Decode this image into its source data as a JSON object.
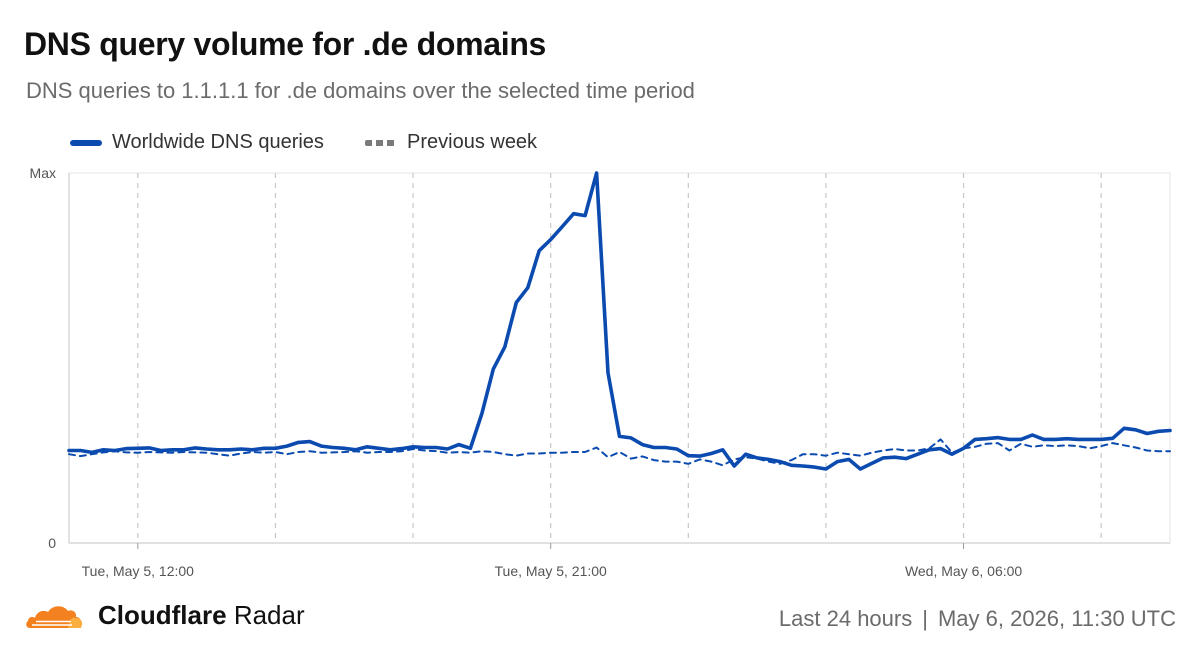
{
  "header": {
    "title": "DNS query volume for .de domains",
    "subtitle": "DNS queries to 1.1.1.1 for .de domains over the selected time period"
  },
  "legend": {
    "current_label": "Worldwide DNS queries",
    "previous_label": "Previous week"
  },
  "colors": {
    "current": "#0b4bb0",
    "previous": "#0b4bb0",
    "cloud_orange": "#f48120",
    "cloud_light": "#faae40"
  },
  "footer": {
    "brand_bold": "Cloudflare",
    "brand_regular": "Radar",
    "range": "Last 24 hours",
    "separator": "|",
    "timestamp": "May 6, 2026, 11:30 UTC"
  },
  "chart_data": {
    "type": "line",
    "title": "DNS query volume for .de domains",
    "xlabel": "",
    "ylabel": "",
    "ylim": [
      0,
      1
    ],
    "ytick_labels": [
      "0",
      "Max"
    ],
    "xlim": [
      10.5,
      34.5
    ],
    "xtick_positions": [
      12,
      21,
      30
    ],
    "xtick_labels": [
      "Tue, May 5, 12:00",
      "Tue, May 5, 21:00",
      "Wed, May 6, 06:00"
    ],
    "gridline_positions": [
      12,
      15,
      18,
      21,
      24,
      27,
      30,
      33
    ],
    "grid": "vertical dashed",
    "legend_position": "top-left",
    "series": [
      {
        "name": "Worldwide DNS queries",
        "style": "solid",
        "points": [
          [
            10.5,
            0.25
          ],
          [
            10.75,
            0.25
          ],
          [
            11.0,
            0.245
          ],
          [
            11.25,
            0.252
          ],
          [
            11.5,
            0.25
          ],
          [
            11.75,
            0.255
          ],
          [
            12.0,
            0.256
          ],
          [
            12.25,
            0.257
          ],
          [
            12.5,
            0.25
          ],
          [
            12.75,
            0.252
          ],
          [
            13.0,
            0.252
          ],
          [
            13.25,
            0.257
          ],
          [
            13.5,
            0.254
          ],
          [
            13.75,
            0.252
          ],
          [
            14.0,
            0.252
          ],
          [
            14.25,
            0.254
          ],
          [
            14.5,
            0.252
          ],
          [
            14.75,
            0.256
          ],
          [
            15.0,
            0.256
          ],
          [
            15.25,
            0.262
          ],
          [
            15.5,
            0.272
          ],
          [
            15.75,
            0.274
          ],
          [
            16.0,
            0.262
          ],
          [
            16.25,
            0.258
          ],
          [
            16.5,
            0.256
          ],
          [
            16.75,
            0.252
          ],
          [
            17.0,
            0.26
          ],
          [
            17.25,
            0.256
          ],
          [
            17.5,
            0.252
          ],
          [
            17.75,
            0.255
          ],
          [
            18.0,
            0.26
          ],
          [
            18.25,
            0.258
          ],
          [
            18.5,
            0.258
          ],
          [
            18.75,
            0.254
          ],
          [
            19.0,
            0.266
          ],
          [
            19.25,
            0.256
          ],
          [
            19.5,
            0.35
          ],
          [
            19.75,
            0.47
          ],
          [
            20.0,
            0.53
          ],
          [
            20.25,
            0.65
          ],
          [
            20.5,
            0.69
          ],
          [
            20.75,
            0.79
          ],
          [
            21.0,
            0.82
          ],
          [
            21.25,
            0.855
          ],
          [
            21.5,
            0.89
          ],
          [
            21.75,
            0.885
          ],
          [
            22.0,
            1.0
          ],
          [
            22.25,
            0.46
          ],
          [
            22.5,
            0.288
          ],
          [
            22.75,
            0.284
          ],
          [
            23.0,
            0.266
          ],
          [
            23.25,
            0.258
          ],
          [
            23.5,
            0.258
          ],
          [
            23.75,
            0.254
          ],
          [
            24.0,
            0.236
          ],
          [
            24.25,
            0.235
          ],
          [
            24.5,
            0.242
          ],
          [
            24.75,
            0.252
          ],
          [
            25.0,
            0.208
          ],
          [
            25.25,
            0.24
          ],
          [
            25.5,
            0.23
          ],
          [
            25.75,
            0.226
          ],
          [
            26.0,
            0.22
          ],
          [
            26.25,
            0.21
          ],
          [
            26.5,
            0.208
          ],
          [
            26.75,
            0.205
          ],
          [
            27.0,
            0.2
          ],
          [
            27.25,
            0.22
          ],
          [
            27.5,
            0.226
          ],
          [
            27.75,
            0.2
          ],
          [
            28.0,
            0.215
          ],
          [
            28.25,
            0.23
          ],
          [
            28.5,
            0.232
          ],
          [
            28.75,
            0.228
          ],
          [
            29.0,
            0.24
          ],
          [
            29.25,
            0.252
          ],
          [
            29.5,
            0.255
          ],
          [
            29.75,
            0.24
          ],
          [
            30.0,
            0.256
          ],
          [
            30.25,
            0.28
          ],
          [
            30.5,
            0.282
          ],
          [
            30.75,
            0.285
          ],
          [
            31.0,
            0.28
          ],
          [
            31.25,
            0.28
          ],
          [
            31.5,
            0.292
          ],
          [
            31.75,
            0.28
          ],
          [
            32.0,
            0.28
          ],
          [
            32.25,
            0.282
          ],
          [
            32.5,
            0.28
          ],
          [
            32.75,
            0.28
          ],
          [
            33.0,
            0.28
          ],
          [
            33.25,
            0.283
          ],
          [
            33.5,
            0.31
          ],
          [
            33.75,
            0.306
          ],
          [
            34.0,
            0.296
          ],
          [
            34.25,
            0.302
          ],
          [
            34.5,
            0.304
          ]
        ]
      },
      {
        "name": "Previous week",
        "style": "dashed",
        "points": [
          [
            10.5,
            0.24
          ],
          [
            10.75,
            0.235
          ],
          [
            11.0,
            0.24
          ],
          [
            11.25,
            0.245
          ],
          [
            11.5,
            0.248
          ],
          [
            11.75,
            0.245
          ],
          [
            12.0,
            0.244
          ],
          [
            12.25,
            0.246
          ],
          [
            12.5,
            0.245
          ],
          [
            12.75,
            0.244
          ],
          [
            13.0,
            0.246
          ],
          [
            13.25,
            0.245
          ],
          [
            13.5,
            0.244
          ],
          [
            13.75,
            0.24
          ],
          [
            14.0,
            0.236
          ],
          [
            14.25,
            0.242
          ],
          [
            14.5,
            0.246
          ],
          [
            14.75,
            0.244
          ],
          [
            15.0,
            0.246
          ],
          [
            15.25,
            0.24
          ],
          [
            15.5,
            0.246
          ],
          [
            15.75,
            0.248
          ],
          [
            16.0,
            0.244
          ],
          [
            16.25,
            0.245
          ],
          [
            16.5,
            0.246
          ],
          [
            16.75,
            0.248
          ],
          [
            17.0,
            0.244
          ],
          [
            17.25,
            0.246
          ],
          [
            17.5,
            0.246
          ],
          [
            17.75,
            0.248
          ],
          [
            18.0,
            0.254
          ],
          [
            18.25,
            0.25
          ],
          [
            18.5,
            0.248
          ],
          [
            18.75,
            0.244
          ],
          [
            19.0,
            0.246
          ],
          [
            19.25,
            0.244
          ],
          [
            19.5,
            0.248
          ],
          [
            19.75,
            0.246
          ],
          [
            20.0,
            0.24
          ],
          [
            20.25,
            0.236
          ],
          [
            20.5,
            0.242
          ],
          [
            20.75,
            0.242
          ],
          [
            21.0,
            0.244
          ],
          [
            21.25,
            0.244
          ],
          [
            21.5,
            0.246
          ],
          [
            21.75,
            0.246
          ],
          [
            22.0,
            0.258
          ],
          [
            22.25,
            0.232
          ],
          [
            22.5,
            0.246
          ],
          [
            22.75,
            0.228
          ],
          [
            23.0,
            0.234
          ],
          [
            23.25,
            0.224
          ],
          [
            23.5,
            0.22
          ],
          [
            23.75,
            0.22
          ],
          [
            24.0,
            0.214
          ],
          [
            24.25,
            0.226
          ],
          [
            24.5,
            0.22
          ],
          [
            24.75,
            0.21
          ],
          [
            25.0,
            0.226
          ],
          [
            25.25,
            0.232
          ],
          [
            25.5,
            0.228
          ],
          [
            25.75,
            0.22
          ],
          [
            26.0,
            0.214
          ],
          [
            26.25,
            0.224
          ],
          [
            26.5,
            0.24
          ],
          [
            26.75,
            0.24
          ],
          [
            27.0,
            0.236
          ],
          [
            27.25,
            0.244
          ],
          [
            27.5,
            0.24
          ],
          [
            27.75,
            0.236
          ],
          [
            28.0,
            0.244
          ],
          [
            28.25,
            0.25
          ],
          [
            28.5,
            0.254
          ],
          [
            28.75,
            0.25
          ],
          [
            29.0,
            0.25
          ],
          [
            29.25,
            0.256
          ],
          [
            29.5,
            0.28
          ],
          [
            29.75,
            0.244
          ],
          [
            30.0,
            0.256
          ],
          [
            30.25,
            0.26
          ],
          [
            30.5,
            0.268
          ],
          [
            30.75,
            0.27
          ],
          [
            31.0,
            0.25
          ],
          [
            31.25,
            0.268
          ],
          [
            31.5,
            0.26
          ],
          [
            31.75,
            0.264
          ],
          [
            32.0,
            0.262
          ],
          [
            32.25,
            0.264
          ],
          [
            32.5,
            0.262
          ],
          [
            32.75,
            0.256
          ],
          [
            33.0,
            0.262
          ],
          [
            33.25,
            0.27
          ],
          [
            33.5,
            0.264
          ],
          [
            33.75,
            0.258
          ],
          [
            34.0,
            0.25
          ],
          [
            34.25,
            0.248
          ],
          [
            34.5,
            0.248
          ]
        ]
      }
    ]
  }
}
